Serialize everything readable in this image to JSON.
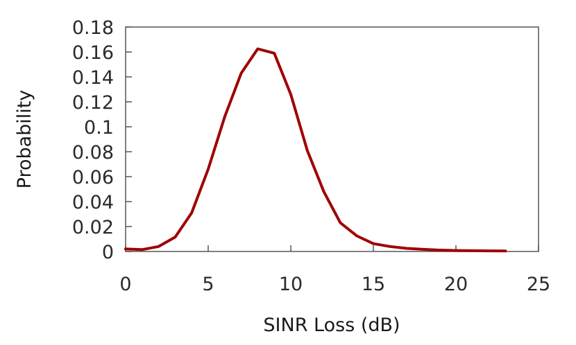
{
  "chart_data": {
    "type": "line",
    "title": "",
    "xlabel": "SINR Loss (dB)",
    "ylabel": "Probability",
    "xlim": [
      0,
      25
    ],
    "ylim": [
      0,
      0.18
    ],
    "x_ticks": [
      "0",
      "5",
      "10",
      "15",
      "20",
      "25"
    ],
    "y_ticks": [
      "0",
      "0.02",
      "0.04",
      "0.06",
      "0.08",
      "0.1",
      "0.12",
      "0.14",
      "0.16",
      "0.18"
    ],
    "grid": false,
    "legend": "none",
    "line_color": "#a00000",
    "series": [
      {
        "x": [
          0,
          1,
          2,
          3,
          4,
          5,
          6,
          7,
          8,
          9,
          10,
          11,
          12,
          13,
          14,
          15,
          16,
          17,
          18,
          19,
          20,
          21,
          22,
          23
        ],
        "values": [
          0.002,
          0.0015,
          0.004,
          0.0115,
          0.031,
          0.066,
          0.108,
          0.143,
          0.1625,
          0.159,
          0.126,
          0.081,
          0.048,
          0.023,
          0.0125,
          0.0063,
          0.004,
          0.0025,
          0.0017,
          0.0011,
          0.0008,
          0.0006,
          0.0005,
          0.0004
        ]
      }
    ]
  }
}
